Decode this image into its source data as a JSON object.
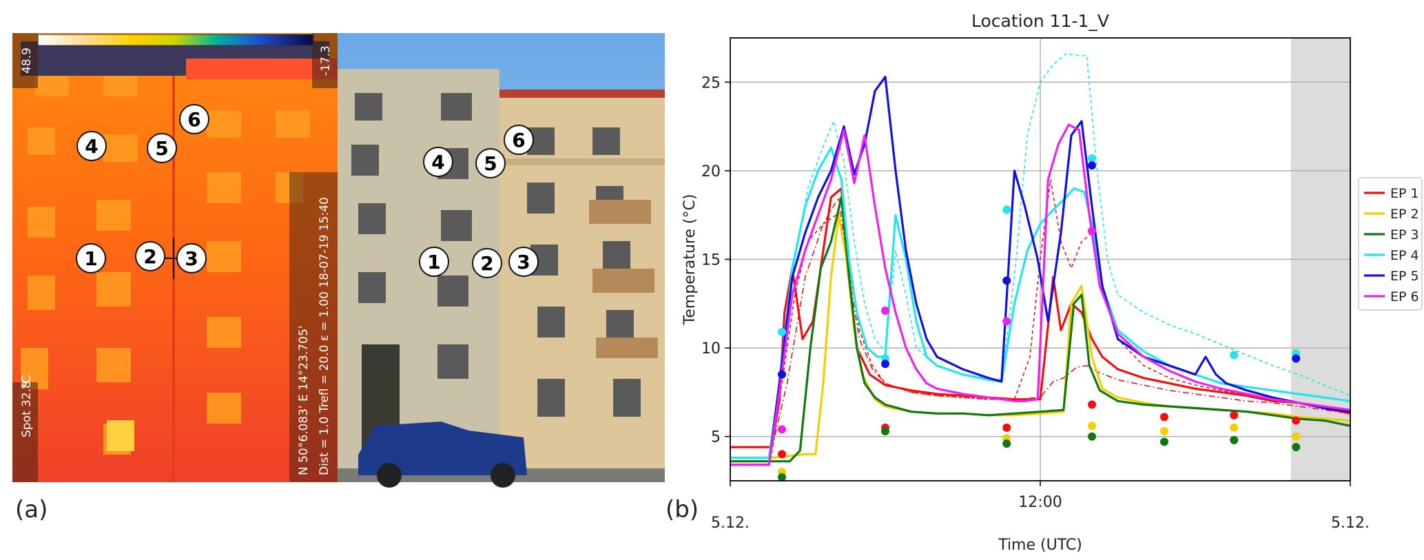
{
  "panel_labels": {
    "a": "(a)",
    "b": "(b)"
  },
  "thermal": {
    "scale_max": "48.9",
    "scale_min": "-17.3",
    "unit": "°C",
    "spot": "Spot 32.8",
    "coords": "N 50°6.083' E 14°23.705'",
    "params": "Dist = 1.0  Trefl = 20.0  ε = 1.00  18-07-19 15:40",
    "markers": [
      "1",
      "2",
      "3",
      "4",
      "5",
      "6"
    ]
  },
  "photo": {
    "markers": [
      "1",
      "2",
      "3",
      "4",
      "5",
      "6"
    ]
  },
  "chart_data": {
    "type": "line",
    "title": "Location 11-1_V",
    "xlabel": "Time (UTC)",
    "ylabel": "Temperature (°C)",
    "x_range": [
      0,
      24
    ],
    "ylim": [
      2.5,
      27.5
    ],
    "y_ticks": [
      5,
      10,
      15,
      20,
      25
    ],
    "x_tick_labels": [
      {
        "x": 12,
        "label": "12:00"
      }
    ],
    "x_date_labels": [
      {
        "x": 0,
        "label": "5.12."
      },
      {
        "x": 24,
        "label": "5.12."
      }
    ],
    "grid": true,
    "shaded_region": [
      21.7,
      24
    ],
    "legend_position": "right",
    "series": [
      {
        "name": "EP  1",
        "color": "#ee1111",
        "x": [
          0,
          1.6,
          1.9,
          2.1,
          2.4,
          2.8,
          3.2,
          3.9,
          4.3,
          4.6,
          4.9,
          5.4,
          6.0,
          7.0,
          8.0,
          9.0,
          10.0,
          11.0,
          12.0,
          12.5,
          12.8,
          13.2,
          13.6,
          14.0,
          14.4,
          15.0,
          16.0,
          17.0,
          18.0,
          19.0,
          20.0,
          21.0,
          22.0,
          23.0,
          24.0
        ],
        "y": [
          4.4,
          4.4,
          7.0,
          12.0,
          14.5,
          10.5,
          11.5,
          18.5,
          19.0,
          14.0,
          10.0,
          8.5,
          7.9,
          7.6,
          7.4,
          7.3,
          7.2,
          7.1,
          7.1,
          14.0,
          11.0,
          12.5,
          12.0,
          10.5,
          9.5,
          8.8,
          8.3,
          8.0,
          7.7,
          7.5,
          7.3,
          7.0,
          6.9,
          6.6,
          6.3
        ]
      },
      {
        "name": "EP  2",
        "color": "#f2cf00",
        "x": [
          0,
          1.6,
          2.3,
          2.9,
          3.3,
          3.6,
          3.9,
          4.2,
          4.5,
          4.8,
          5.1,
          5.6,
          6.0,
          7.0,
          8.0,
          9.0,
          10.0,
          11.0,
          12.0,
          12.9,
          13.2,
          13.6,
          14.0,
          14.4,
          15.0,
          16.0,
          17.0,
          18.0,
          19.0,
          20.0,
          21.0,
          22.0,
          23.0,
          24.0
        ],
        "y": [
          3.8,
          3.8,
          3.9,
          4.0,
          4.0,
          8.0,
          14.0,
          17.5,
          15.0,
          11.0,
          8.5,
          7.1,
          6.7,
          6.4,
          6.3,
          6.3,
          6.2,
          6.2,
          6.3,
          6.4,
          12.5,
          13.5,
          9.5,
          7.7,
          7.2,
          6.9,
          6.7,
          6.6,
          6.5,
          6.4,
          6.3,
          6.1,
          6.0,
          5.9
        ]
      },
      {
        "name": "EP  3",
        "color": "#117711",
        "x": [
          0,
          1.6,
          2.3,
          2.7,
          3.1,
          3.5,
          3.9,
          4.3,
          4.6,
          4.9,
          5.2,
          5.6,
          6.0,
          7.0,
          8.0,
          9.0,
          10.0,
          11.0,
          12.0,
          12.9,
          13.3,
          13.6,
          13.9,
          14.3,
          15.0,
          16.0,
          17.0,
          18.0,
          19.0,
          20.0,
          21.0,
          22.0,
          23.0,
          24.0
        ],
        "y": [
          3.6,
          3.6,
          3.6,
          4.2,
          10.0,
          14.5,
          16.0,
          18.5,
          14.0,
          10.0,
          8.0,
          7.2,
          6.8,
          6.4,
          6.3,
          6.3,
          6.2,
          6.3,
          6.4,
          6.5,
          12.5,
          13.0,
          9.0,
          7.6,
          7.0,
          6.8,
          6.7,
          6.6,
          6.5,
          6.4,
          6.2,
          6.0,
          5.9,
          5.6
        ]
      },
      {
        "name": "EP  4",
        "color": "#22e5ee",
        "x": [
          0,
          1.5,
          1.9,
          2.4,
          2.9,
          3.4,
          3.9,
          4.3,
          4.6,
          4.9,
          5.3,
          5.7,
          6.0,
          6.4,
          6.8,
          7.2,
          7.6,
          8.0,
          9.0,
          10.0,
          10.5,
          11.0,
          11.5,
          12.0,
          12.5,
          13.0,
          13.3,
          13.7,
          14.0,
          14.4,
          15.0,
          16.0,
          17.0,
          18.0,
          19.0,
          20.0,
          21.0,
          22.0,
          23.0,
          24.0
        ],
        "y": [
          3.8,
          3.8,
          8.0,
          14.5,
          18.0,
          20.0,
          21.3,
          19.5,
          15.0,
          12.0,
          10.0,
          9.5,
          9.5,
          17.5,
          15.0,
          11.5,
          9.5,
          9.0,
          8.5,
          8.2,
          8.1,
          12.5,
          15.5,
          17.0,
          17.8,
          18.5,
          19.0,
          18.8,
          17.0,
          13.5,
          11.0,
          9.8,
          9.0,
          8.5,
          8.0,
          7.8,
          7.6,
          7.4,
          7.2,
          7.0
        ]
      },
      {
        "name": "EP  5",
        "color": "#1111dd",
        "x": [
          0,
          1.5,
          1.9,
          2.4,
          2.9,
          3.4,
          3.9,
          4.4,
          4.8,
          5.2,
          5.6,
          6.0,
          6.4,
          6.8,
          7.2,
          7.6,
          8.0,
          9.0,
          10.0,
          10.5,
          11.0,
          11.4,
          11.9,
          12.3,
          12.8,
          13.2,
          13.6,
          14.0,
          14.4,
          15.0,
          16.0,
          17.0,
          18.0,
          18.4,
          18.8,
          19.2,
          20.0,
          21.0,
          22.0,
          23.0,
          24.0
        ],
        "y": [
          3.4,
          3.4,
          8.0,
          14.0,
          16.5,
          18.5,
          20.0,
          22.5,
          19.8,
          21.5,
          24.5,
          25.3,
          20.0,
          15.5,
          12.5,
          10.5,
          9.5,
          8.8,
          8.3,
          8.1,
          20.0,
          18.0,
          15.0,
          11.5,
          16.5,
          22.0,
          22.8,
          18.0,
          13.5,
          10.5,
          9.5,
          9.0,
          8.5,
          9.5,
          8.5,
          8.0,
          7.6,
          7.2,
          6.9,
          6.6,
          6.4
        ]
      },
      {
        "name": "EP  6",
        "color": "#ee22ee",
        "x": [
          0,
          1.5,
          1.9,
          2.4,
          2.9,
          3.4,
          3.9,
          4.4,
          4.8,
          5.2,
          5.6,
          6.0,
          6.4,
          6.8,
          7.2,
          7.6,
          8.0,
          9.0,
          10.0,
          10.5,
          11.0,
          11.4,
          11.9,
          12.3,
          12.7,
          13.1,
          13.5,
          13.9,
          14.3,
          15.0,
          16.0,
          17.0,
          18.0,
          19.0,
          20.0,
          21.0,
          22.0,
          23.0,
          24.0
        ],
        "y": [
          3.4,
          3.4,
          7.5,
          13.0,
          15.5,
          17.5,
          19.5,
          22.3,
          19.3,
          22.0,
          18.0,
          14.5,
          12.0,
          10.0,
          8.8,
          8.0,
          7.7,
          7.4,
          7.2,
          7.1,
          7.0,
          7.0,
          7.1,
          19.5,
          21.5,
          22.6,
          22.3,
          17.5,
          13.5,
          10.8,
          9.5,
          8.7,
          8.1,
          7.7,
          7.4,
          7.1,
          6.9,
          6.7,
          6.5
        ]
      }
    ],
    "unlabeled_dashed_series": [
      {
        "color": "#22e5ee",
        "x": [
          0,
          1.6,
          2.0,
          2.5,
          3.0,
          3.5,
          4.0,
          4.4,
          4.8,
          5.2,
          5.6,
          6.0,
          6.4,
          6.8,
          7.2,
          8.0,
          9.0,
          10.0,
          10.5,
          11.0,
          11.5,
          12.0,
          12.5,
          13.0,
          13.5,
          13.8,
          14.2,
          14.6,
          15.0,
          16.0,
          17.0,
          18.0,
          19.0,
          20.0,
          21.0,
          22.0,
          23.0,
          24.0
        ],
        "y": [
          3.6,
          3.6,
          8.5,
          15.0,
          19.0,
          21.0,
          22.8,
          20.5,
          16.0,
          12.5,
          10.5,
          9.8,
          15.5,
          13.0,
          10.0,
          9.0,
          8.5,
          8.3,
          8.2,
          14.0,
          22.0,
          25.0,
          26.0,
          26.6,
          26.5,
          26.5,
          20.0,
          15.0,
          13.0,
          12.0,
          11.3,
          10.8,
          10.2,
          9.6,
          9.0,
          8.5,
          7.9,
          7.3
        ]
      },
      {
        "color": "#ee1111",
        "x": [
          0,
          1.5,
          2.0,
          2.5,
          3.0,
          3.6,
          4.2,
          4.6,
          5.0,
          5.5,
          6.0,
          7.0,
          8.0,
          9.0,
          10.0,
          11.0,
          11.6,
          12.0,
          12.4,
          12.8,
          13.2,
          13.6,
          14.0,
          14.5,
          15.0,
          16.0,
          17.0,
          18.0,
          19.0,
          20.0,
          21.0,
          22.0,
          23.0,
          24.0
        ],
        "y": [
          3.6,
          3.6,
          8.0,
          13.0,
          16.0,
          17.0,
          17.6,
          14.5,
          11.0,
          9.0,
          8.0,
          7.5,
          7.3,
          7.2,
          7.1,
          7.1,
          9.5,
          15.0,
          19.5,
          16.0,
          14.5,
          16.0,
          16.5,
          13.0,
          10.5,
          9.0,
          8.3,
          7.9,
          7.6,
          7.3,
          7.1,
          6.9,
          6.7,
          6.5
        ]
      },
      {
        "color": "#ee1111",
        "dashstyle": "dashdot",
        "x": [
          0,
          1.5,
          2.2,
          2.9,
          3.6,
          4.2,
          4.6,
          5.0,
          5.5,
          6.0,
          7.0,
          8.0,
          9.0,
          10.0,
          11.0,
          12.0,
          12.5,
          12.9,
          13.4,
          13.8,
          14.3,
          15.0,
          16.0,
          17.0,
          18.0,
          19.0,
          20.0,
          21.0,
          22.0,
          23.0,
          24.0
        ],
        "y": [
          3.6,
          3.6,
          8.0,
          14.0,
          17.0,
          18.5,
          14.0,
          10.5,
          8.8,
          8.0,
          7.5,
          7.3,
          7.2,
          7.1,
          7.1,
          7.2,
          8.1,
          8.3,
          8.9,
          9.0,
          8.6,
          8.2,
          7.9,
          7.6,
          7.4,
          7.2,
          7.0,
          6.9,
          6.7,
          6.5,
          6.3
        ]
      }
    ],
    "measured_points": [
      {
        "color": "#ee1111",
        "x": [
          2.0,
          6.0,
          10.7,
          14.0,
          16.8,
          19.5,
          21.9
        ],
        "y": [
          4.0,
          5.5,
          5.5,
          6.8,
          6.1,
          6.2,
          5.9
        ]
      },
      {
        "color": "#f2cf00",
        "x": [
          2.0,
          6.0,
          10.7,
          14.0,
          16.8,
          19.5,
          21.9
        ],
        "y": [
          3.0,
          5.3,
          4.9,
          5.6,
          5.3,
          5.5,
          5.0
        ]
      },
      {
        "color": "#117711",
        "x": [
          2.0,
          6.0,
          10.7,
          14.0,
          16.8,
          19.5,
          21.9
        ],
        "y": [
          2.7,
          5.3,
          4.6,
          5.0,
          4.7,
          4.8,
          4.4
        ]
      },
      {
        "color": "#22e5ee",
        "x": [
          2.0,
          6.0,
          10.7,
          14.0,
          19.5,
          21.9
        ],
        "y": [
          10.9,
          9.4,
          17.8,
          20.7,
          9.6,
          9.7
        ]
      },
      {
        "color": "#1111dd",
        "x": [
          2.0,
          6.0,
          10.7,
          14.0,
          21.9
        ],
        "y": [
          8.5,
          9.1,
          13.8,
          20.3,
          9.4
        ]
      },
      {
        "color": "#ee22ee",
        "x": [
          2.0,
          6.0,
          10.7,
          14.0
        ],
        "y": [
          5.4,
          12.1,
          11.5,
          16.6
        ]
      }
    ]
  }
}
